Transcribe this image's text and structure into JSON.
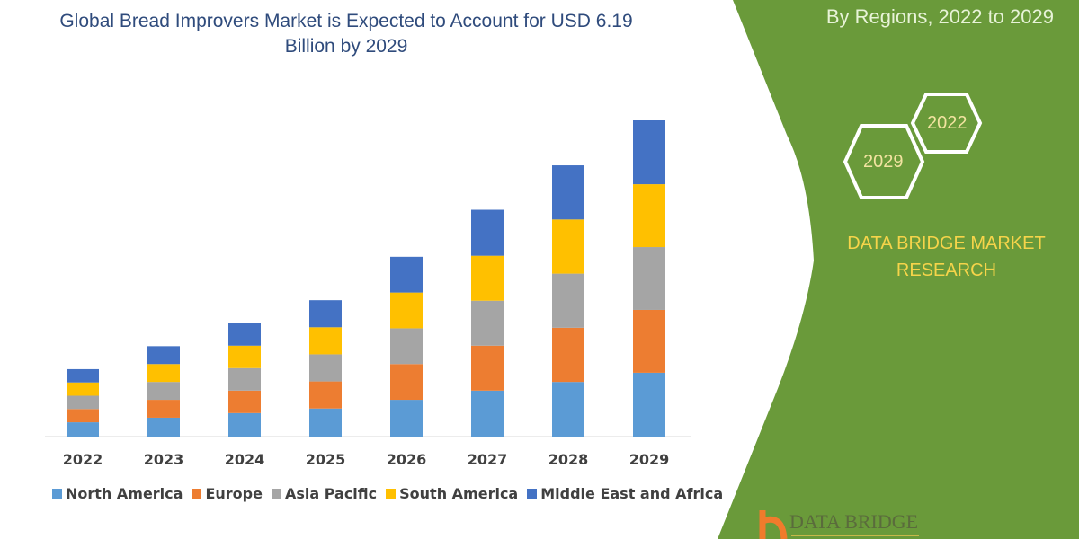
{
  "header": {
    "subtitle": "By Regions, 2022 to 2029"
  },
  "badges": {
    "hex_2022": "2022",
    "hex_2029": "2029"
  },
  "brand": {
    "name": "DATA BRIDGE MARKET RESEARCH",
    "logo_text": "DATA BRIDGE"
  },
  "colors": {
    "panel": "#6a9a3a",
    "title": "#2f4b7c"
  },
  "chart_data": {
    "type": "bar",
    "stacked": true,
    "title": "Global Bread Improvers Market is Expected to Account for USD 6.19 Billion by 2029",
    "categories": [
      "2022",
      "2023",
      "2024",
      "2025",
      "2026",
      "2027",
      "2028",
      "2029"
    ],
    "series": [
      {
        "name": "North America",
        "color": "#5b9bd5",
        "values": [
          0.28,
          0.37,
          0.46,
          0.55,
          0.72,
          0.9,
          1.07,
          1.25
        ]
      },
      {
        "name": "Europe",
        "color": "#ed7d31",
        "values": [
          0.26,
          0.35,
          0.44,
          0.53,
          0.7,
          0.88,
          1.06,
          1.23
        ]
      },
      {
        "name": "Asia Pacific",
        "color": "#a5a5a5",
        "values": [
          0.26,
          0.35,
          0.44,
          0.53,
          0.7,
          0.88,
          1.06,
          1.23
        ]
      },
      {
        "name": "South America",
        "color": "#ffc000",
        "values": [
          0.26,
          0.35,
          0.44,
          0.53,
          0.7,
          0.88,
          1.06,
          1.23
        ]
      },
      {
        "name": "Middle East and Africa",
        "color": "#4472c4",
        "values": [
          0.26,
          0.35,
          0.44,
          0.53,
          0.7,
          0.9,
          1.06,
          1.25
        ]
      }
    ],
    "ylim": [
      0,
      6.19
    ],
    "grid": false,
    "legend": "bottom",
    "unit": "USD Billion"
  }
}
